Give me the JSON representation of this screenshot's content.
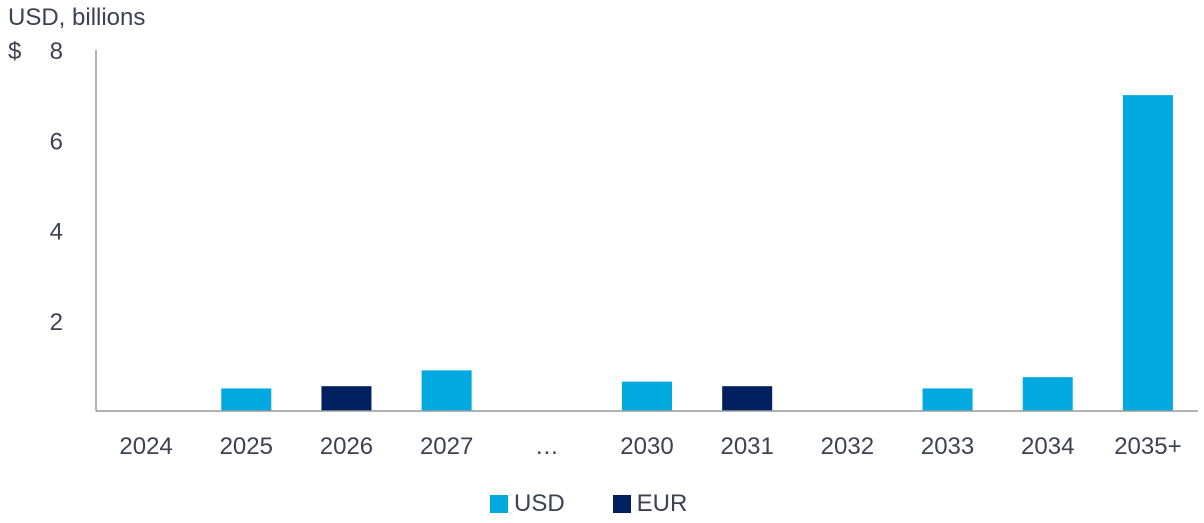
{
  "chart_data": {
    "type": "bar",
    "ylabel": "USD, billions",
    "yunit_prefix": "$",
    "ylim": [
      0,
      8
    ],
    "yticks": [
      2,
      4,
      6,
      8
    ],
    "categories": [
      "2024",
      "2025",
      "2026",
      "2027",
      "…",
      "2030",
      "2031",
      "2032",
      "2033",
      "2034",
      "2035+"
    ],
    "series": [
      {
        "name": "USD",
        "color": "#00a9e0",
        "values": [
          0,
          0.5,
          0,
          0.9,
          0,
          0.65,
          0,
          0,
          0.5,
          0.75,
          7.0
        ]
      },
      {
        "name": "EUR",
        "color": "#002060",
        "values": [
          0,
          0,
          0.55,
          0,
          0,
          0,
          0.55,
          0,
          0,
          0,
          0
        ]
      }
    ],
    "grid": false,
    "legend": "bottom-center"
  }
}
